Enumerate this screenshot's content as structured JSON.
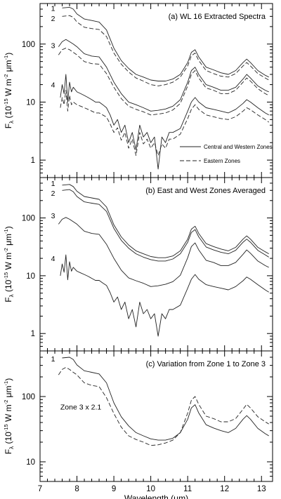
{
  "chart_data": [
    {
      "type": "line",
      "title": "(a) WL 16 Extracted Spectra",
      "xlim": [
        7,
        13.3
      ],
      "ylim": [
        0.5,
        500
      ],
      "yscale": "log",
      "ylabel": {
        "main": "F",
        "sub": "λ",
        "rest": " (10",
        "exp1": "-15",
        "mid": " W m",
        "exp2": "-2",
        "tail": " μm",
        "exp3": "-1",
        "close": ")"
      },
      "legend": {
        "position": "bottom-right",
        "entries": [
          {
            "label": "Central and Western Zones",
            "style": "solid"
          },
          {
            "label": "Eastern Zones",
            "style": "dashed"
          }
        ]
      },
      "zone_labels": [
        {
          "text": "1",
          "x": 7.45,
          "y": 420
        },
        {
          "text": "2",
          "x": 7.45,
          "y": 280
        },
        {
          "text": "3",
          "x": 7.45,
          "y": 95
        },
        {
          "text": "4",
          "x": 7.45,
          "y": 20
        }
      ],
      "series": [
        {
          "style": "solid",
          "x": [
            7.6,
            7.8,
            7.9,
            8.0,
            8.2,
            8.4,
            8.6,
            8.8,
            9.0,
            9.2,
            9.4,
            9.6,
            9.8,
            10.0,
            10.2,
            10.4,
            10.6,
            10.8,
            11.0,
            11.1,
            11.2,
            11.3,
            11.5,
            11.7,
            11.9,
            12.1,
            12.3,
            12.5,
            12.6,
            12.7,
            12.9,
            13.1,
            13.2
          ],
          "y": [
            420,
            430,
            400,
            330,
            270,
            255,
            240,
            175,
            85,
            52,
            38,
            30,
            27,
            24,
            23,
            23,
            25,
            30,
            48,
            72,
            80,
            60,
            40,
            36,
            32,
            30,
            35,
            48,
            55,
            48,
            35,
            29,
            27
          ]
        },
        {
          "style": "dashed",
          "x": [
            7.6,
            7.8,
            7.9,
            8.0,
            8.2,
            8.4,
            8.6,
            8.8,
            9.0,
            9.2,
            9.4,
            9.6,
            9.8,
            10.0,
            10.2,
            10.4,
            10.6,
            10.8,
            11.0,
            11.1,
            11.2,
            11.3,
            11.5,
            11.7,
            11.9,
            12.1,
            12.3,
            12.5,
            12.6,
            12.7,
            12.9,
            13.1,
            13.2
          ],
          "y": [
            300,
            310,
            290,
            240,
            195,
            185,
            178,
            135,
            70,
            45,
            33,
            26,
            23,
            20,
            19,
            20,
            22,
            27,
            42,
            63,
            70,
            52,
            35,
            31,
            28,
            27,
            31,
            42,
            48,
            42,
            31,
            26,
            24
          ]
        },
        {
          "style": "solid",
          "x": [
            7.5,
            7.6,
            7.7,
            7.8,
            7.9,
            8.0,
            8.2,
            8.4,
            8.6,
            8.8,
            9.0,
            9.2,
            9.4,
            9.6,
            9.8,
            10.0,
            10.2,
            10.4,
            10.6,
            10.8,
            11.0,
            11.1,
            11.2,
            11.3,
            11.5,
            11.7,
            11.9,
            12.1,
            12.3,
            12.5,
            12.6,
            12.7,
            12.9,
            13.1,
            13.2
          ],
          "y": [
            90,
            110,
            120,
            110,
            100,
            90,
            68,
            62,
            60,
            40,
            22,
            14,
            10,
            9,
            8,
            7,
            7.2,
            7.6,
            8.5,
            11,
            22,
            35,
            40,
            30,
            20,
            18,
            16,
            16,
            18,
            25,
            30,
            26,
            19,
            16,
            15
          ]
        },
        {
          "style": "dashed",
          "x": [
            7.5,
            7.6,
            7.7,
            7.8,
            7.9,
            8.0,
            8.2,
            8.4,
            8.6,
            8.8,
            9.0,
            9.2,
            9.4,
            9.6,
            9.8,
            10.0,
            10.2,
            10.4,
            10.6,
            10.8,
            11.0,
            11.1,
            11.2,
            11.3,
            11.5,
            11.7,
            11.9,
            12.1,
            12.3,
            12.5,
            12.6,
            12.7,
            12.9,
            13.1,
            13.2
          ],
          "y": [
            65,
            80,
            85,
            80,
            72,
            65,
            50,
            46,
            45,
            31,
            18,
            11.5,
            8.5,
            7.5,
            6.8,
            6,
            6.2,
            6.5,
            7.3,
            9.5,
            19,
            30,
            35,
            26,
            17.5,
            16,
            14,
            14,
            16,
            22,
            26,
            23,
            17,
            14,
            13
          ]
        },
        {
          "style": "solid",
          "x": [
            7.55,
            7.6,
            7.65,
            7.7,
            7.75,
            7.8,
            7.85,
            7.9,
            8.0,
            8.1,
            8.2,
            8.3,
            8.4,
            8.5,
            8.6,
            8.7,
            8.8,
            8.9,
            9.0,
            9.1,
            9.2,
            9.3,
            9.4,
            9.5,
            9.6,
            9.7,
            9.8,
            9.9,
            10.0,
            10.1,
            10.2,
            10.3,
            10.4,
            10.5,
            10.6,
            10.8,
            11.0,
            11.1,
            11.2,
            11.3,
            11.5,
            11.7,
            11.9,
            12.1,
            12.3,
            12.5,
            12.6,
            12.7,
            12.9,
            13.1,
            13.2
          ],
          "y": [
            12,
            20,
            14,
            30,
            10,
            22,
            15,
            18,
            15,
            14,
            13,
            12,
            11,
            10,
            10,
            9,
            8,
            6,
            4,
            5,
            3,
            4,
            2,
            3,
            1.5,
            4,
            2.5,
            3,
            2,
            2.5,
            0.7,
            2.5,
            2,
            3,
            3,
            3.5,
            7,
            10,
            12,
            10,
            8,
            7.5,
            7,
            6.5,
            7.5,
            9.5,
            11,
            10,
            8,
            6.5,
            6
          ]
        },
        {
          "style": "dashed",
          "x": [
            7.55,
            7.6,
            7.65,
            7.7,
            7.75,
            7.8,
            7.85,
            7.9,
            8.0,
            8.1,
            8.2,
            8.3,
            8.4,
            8.5,
            8.6,
            8.7,
            8.8,
            8.9,
            9.0,
            9.1,
            9.2,
            9.3,
            9.4,
            9.5,
            9.6,
            9.7,
            9.8,
            9.9,
            10.0,
            10.1,
            10.2,
            10.3,
            10.4,
            10.5,
            10.6,
            10.8,
            11.0,
            11.1,
            11.2,
            11.3,
            11.5,
            11.7,
            11.9,
            12.1,
            12.3,
            12.5,
            12.6,
            12.7,
            12.9,
            13.1,
            13.2
          ],
          "y": [
            8,
            12,
            9,
            16,
            7,
            13,
            9,
            10,
            9,
            8.5,
            8,
            7.5,
            7,
            6.5,
            6.5,
            6,
            5.5,
            4.2,
            3,
            3.6,
            2.2,
            3,
            1.6,
            2.3,
            1.2,
            3,
            1.9,
            2.3,
            1.6,
            2,
            1.2,
            1.9,
            1.6,
            2.3,
            2.3,
            2.8,
            5.2,
            7.5,
            9,
            7.5,
            6,
            5.6,
            5.2,
            5,
            5.6,
            7,
            8,
            7.4,
            6,
            5,
            4.5
          ]
        }
      ]
    },
    {
      "type": "line",
      "title": "(b) East and West Zones Averaged",
      "xlim": [
        7,
        13.3
      ],
      "ylim": [
        0.5,
        500
      ],
      "yscale": "log",
      "ylabel": {
        "main": "F",
        "sub": "λ",
        "rest": " (10",
        "exp1": "-15",
        "mid": " W m",
        "exp2": "-2",
        "tail": " μm",
        "exp3": "-1",
        "close": ")"
      },
      "zone_labels": [
        {
          "text": "1",
          "x": 7.45,
          "y": 400
        },
        {
          "text": "2",
          "x": 7.45,
          "y": 270
        },
        {
          "text": "3",
          "x": 7.45,
          "y": 110
        },
        {
          "text": "4",
          "x": 7.45,
          "y": 20
        }
      ],
      "series": [
        {
          "style": "solid",
          "x": [
            7.6,
            7.8,
            7.9,
            8.0,
            8.2,
            8.4,
            8.6,
            8.8,
            9.0,
            9.2,
            9.4,
            9.6,
            9.8,
            10.0,
            10.2,
            10.4,
            10.6,
            10.8,
            11.0,
            11.1,
            11.2,
            11.3,
            11.5,
            11.7,
            11.9,
            12.1,
            12.3,
            12.5,
            12.6,
            12.7,
            12.9,
            13.1,
            13.2
          ],
          "y": [
            370,
            380,
            350,
            290,
            235,
            222,
            210,
            155,
            76,
            47,
            34,
            27,
            24,
            21.5,
            20.5,
            20.5,
            22,
            27,
            43,
            64,
            72,
            54,
            36,
            32,
            29,
            27,
            31,
            43,
            49,
            43,
            31,
            26,
            24
          ]
        },
        {
          "style": "solid",
          "x": [
            7.6,
            7.8,
            7.9,
            8.0,
            8.2,
            8.4,
            8.6,
            8.8,
            9.0,
            9.2,
            9.4,
            9.6,
            9.8,
            10.0,
            10.2,
            10.4,
            10.6,
            10.8,
            11.0,
            11.1,
            11.2,
            11.3,
            11.5,
            11.7,
            11.9,
            12.1,
            12.3,
            12.5,
            12.6,
            12.7,
            12.9,
            13.1,
            13.2
          ],
          "y": [
            300,
            310,
            285,
            235,
            190,
            180,
            172,
            130,
            66,
            41,
            30,
            24,
            21,
            19,
            18,
            18,
            19.5,
            24,
            38,
            56,
            63,
            47,
            31.5,
            28,
            25.5,
            24,
            27.5,
            38,
            43,
            38,
            27.5,
            23,
            21
          ]
        },
        {
          "style": "solid",
          "x": [
            7.5,
            7.6,
            7.7,
            7.8,
            7.9,
            8.0,
            8.2,
            8.4,
            8.6,
            8.8,
            9.0,
            9.2,
            9.4,
            9.6,
            9.8,
            10.0,
            10.2,
            10.4,
            10.6,
            10.8,
            11.0,
            11.1,
            11.2,
            11.3,
            11.5,
            11.7,
            11.9,
            12.1,
            12.3,
            12.5,
            12.6,
            12.7,
            12.9,
            13.1,
            13.2
          ],
          "y": [
            78,
            95,
            102,
            95,
            86,
            78,
            59,
            54,
            52,
            35,
            20,
            12.5,
            9.2,
            8.2,
            7.4,
            6.5,
            6.7,
            7.1,
            7.9,
            10.2,
            20.5,
            32,
            37,
            28,
            18.5,
            17,
            15,
            15,
            17,
            23.5,
            28,
            24.5,
            18,
            15,
            14
          ]
        },
        {
          "style": "solid",
          "x": [
            7.55,
            7.6,
            7.65,
            7.7,
            7.75,
            7.8,
            7.85,
            7.9,
            8.0,
            8.1,
            8.2,
            8.3,
            8.4,
            8.5,
            8.6,
            8.7,
            8.8,
            8.9,
            9.0,
            9.1,
            9.2,
            9.3,
            9.4,
            9.5,
            9.6,
            9.7,
            9.8,
            9.9,
            10.0,
            10.1,
            10.2,
            10.3,
            10.4,
            10.5,
            10.6,
            10.8,
            11.0,
            11.1,
            11.2,
            11.3,
            11.5,
            11.7,
            11.9,
            12.1,
            12.3,
            12.5,
            12.6,
            12.7,
            12.9,
            13.1,
            13.2
          ],
          "y": [
            10,
            16,
            11.5,
            23,
            8.5,
            17.5,
            12,
            14,
            12,
            11.2,
            10.5,
            9.8,
            9,
            8.3,
            8.3,
            7.5,
            6.8,
            5.1,
            3.5,
            4.3,
            2.6,
            3.5,
            1.8,
            2.6,
            1.3,
            3.5,
            2.2,
            2.6,
            1.8,
            2.2,
            0.9,
            2.2,
            1.8,
            2.6,
            2.6,
            3.1,
            6.1,
            8.7,
            10.5,
            8.7,
            7,
            6.5,
            6.1,
            5.7,
            6.5,
            8.2,
            9.5,
            8.7,
            7,
            5.7,
            5.2
          ]
        }
      ]
    },
    {
      "type": "line",
      "title": "(c) Variation from Zone 1 to Zone 3",
      "xlim": [
        7,
        13.3
      ],
      "ylim": [
        5,
        500
      ],
      "yscale": "log",
      "xlabel": {
        "main": "Wavelength (",
        "mu": "μ",
        "tail": "m)"
      },
      "ylabel": {
        "main": "F",
        "sub": "λ",
        "rest": " (10",
        "exp1": "-15",
        "mid": " W m",
        "exp2": "-2",
        "tail": " μm",
        "exp3": "-1",
        "close": ")"
      },
      "xticks": [
        7,
        8,
        9,
        10,
        11,
        12,
        13
      ],
      "annotation": {
        "text": "Zone 3 x 2.1",
        "x": 7.55,
        "y": 70
      },
      "zone_labels": [
        {
          "text": "1",
          "x": 7.45,
          "y": 380
        }
      ],
      "series": [
        {
          "style": "solid",
          "x": [
            7.6,
            7.8,
            7.9,
            8.0,
            8.2,
            8.4,
            8.6,
            8.8,
            9.0,
            9.2,
            9.4,
            9.6,
            9.8,
            10.0,
            10.2,
            10.4,
            10.6,
            10.8,
            11.0,
            11.1,
            11.2,
            11.3,
            11.5,
            11.7,
            11.9,
            12.1,
            12.3,
            12.5,
            12.6,
            12.7,
            12.9,
            13.1,
            13.2
          ],
          "y": [
            390,
            400,
            370,
            305,
            248,
            235,
            222,
            162,
            80,
            49,
            35.5,
            28,
            25,
            22.5,
            21.5,
            21.5,
            23,
            28,
            45,
            67,
            75,
            56,
            37,
            33,
            30,
            28,
            32.5,
            45,
            51,
            45,
            32.5,
            27,
            25
          ]
        },
        {
          "style": "dashed",
          "x": [
            7.5,
            7.6,
            7.7,
            7.8,
            7.9,
            8.0,
            8.2,
            8.4,
            8.6,
            8.8,
            9.0,
            9.2,
            9.4,
            9.6,
            9.8,
            10.0,
            10.2,
            10.4,
            10.6,
            10.8,
            11.0,
            11.1,
            11.2,
            11.3,
            11.5,
            11.7,
            11.9,
            12.1,
            12.3,
            12.5,
            12.6,
            12.7,
            12.9,
            13.1,
            13.2
          ],
          "y": [
            215,
            260,
            280,
            260,
            235,
            215,
            162,
            148,
            142,
            96,
            55,
            34,
            25,
            22,
            20,
            17.8,
            18.2,
            19.4,
            21.5,
            28,
            56,
            88,
            100,
            76,
            50,
            46,
            41,
            41,
            46,
            64,
            76,
            67,
            49,
            41,
            38
          ]
        }
      ]
    }
  ]
}
